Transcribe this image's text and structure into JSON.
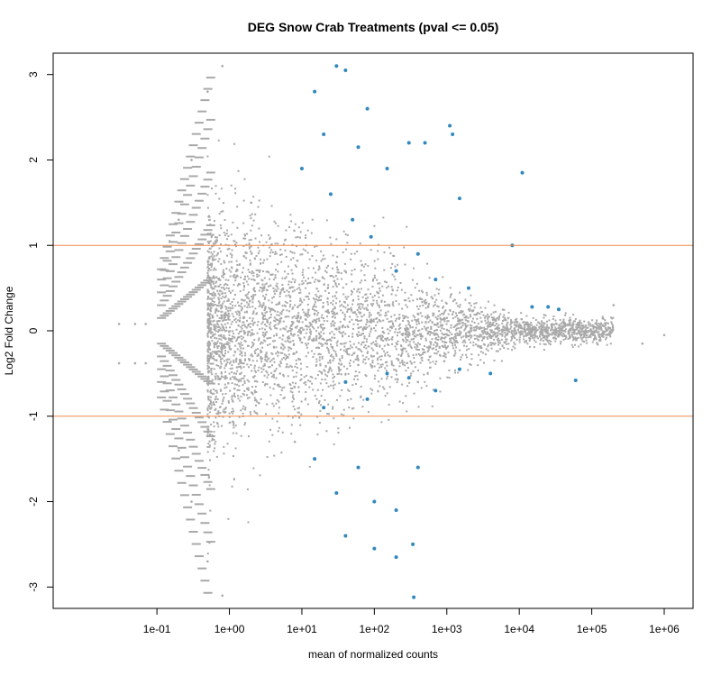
{
  "chart_data": {
    "type": "scatter",
    "title": "DEG Snow Crab Treatments  (pval <= 0.05)",
    "xlabel": "mean of normalized counts",
    "ylabel": "Log2 Fold Change",
    "x_scale": "log10",
    "xlim": [
      0.0037,
      2500000
    ],
    "ylim": [
      -3.25,
      3.25
    ],
    "x_ticks": [
      {
        "value": 0.1,
        "label": "1e-01"
      },
      {
        "value": 1,
        "label": "1e+00"
      },
      {
        "value": 10,
        "label": "1e+01"
      },
      {
        "value": 100,
        "label": "1e+02"
      },
      {
        "value": 1000,
        "label": "1e+03"
      },
      {
        "value": 10000,
        "label": "1e+04"
      },
      {
        "value": 100000,
        "label": "1e+05"
      },
      {
        "value": 1000000,
        "label": "1e+06"
      }
    ],
    "y_ticks": [
      {
        "value": -3,
        "label": "-3"
      },
      {
        "value": -2,
        "label": "-2"
      },
      {
        "value": -1,
        "label": "-1"
      },
      {
        "value": 0,
        "label": "0"
      },
      {
        "value": 1,
        "label": "1"
      },
      {
        "value": 2,
        "label": "2"
      },
      {
        "value": 3,
        "label": "3"
      }
    ],
    "reference_lines": [
      {
        "axis": "y",
        "value": 1,
        "color": "#F08A4B"
      },
      {
        "axis": "y",
        "value": -1,
        "color": "#F08A4B"
      }
    ],
    "grid": false,
    "legend": "none",
    "colors": {
      "not_significant": "#A9A9A9",
      "significant": "#3288BD",
      "threshold_line": "#F08A4B"
    },
    "series": [
      {
        "color": "#A9A9A9",
        "values": [
          [
            0.03,
            0.08
          ],
          [
            0.05,
            0.08
          ],
          [
            0.07,
            0.08
          ],
          [
            0.03,
            -0.38
          ],
          [
            0.05,
            -0.38
          ],
          [
            0.07,
            -0.38
          ],
          [
            0.15,
            1.05
          ],
          [
            0.2,
            1.3
          ],
          [
            0.3,
            2.0
          ],
          [
            0.5,
            2.8
          ],
          [
            0.8,
            3.1
          ],
          [
            0.15,
            -1.05
          ],
          [
            0.2,
            -1.4
          ],
          [
            0.3,
            -2.0
          ],
          [
            0.5,
            -2.7
          ],
          [
            0.8,
            -3.1
          ],
          [
            2,
            1.5
          ],
          [
            3,
            0.5
          ],
          [
            5,
            -0.5
          ],
          [
            8,
            -1.3
          ],
          [
            15,
            0.2
          ],
          [
            30,
            0.8
          ],
          [
            60,
            -0.4
          ],
          [
            150,
            0.3
          ],
          [
            400,
            -0.6
          ],
          [
            1000,
            0.15
          ],
          [
            3000,
            -0.2
          ],
          [
            8000,
            0.1
          ],
          [
            20000,
            0.05
          ],
          [
            60000,
            -0.1
          ],
          [
            200000,
            0.3
          ],
          [
            500000,
            -0.15
          ],
          [
            1000000,
            -0.05
          ]
        ]
      },
      {
        "color": "#3288BD",
        "values": [
          [
            10,
            1.9
          ],
          [
            15,
            2.8
          ],
          [
            20,
            2.3
          ],
          [
            30,
            3.1
          ],
          [
            40,
            3.05
          ],
          [
            60,
            2.15
          ],
          [
            80,
            2.6
          ],
          [
            150,
            1.9
          ],
          [
            300,
            2.2
          ],
          [
            500,
            2.2
          ],
          [
            1100,
            2.4
          ],
          [
            1200,
            2.3
          ],
          [
            11000,
            1.85
          ],
          [
            25,
            1.6
          ],
          [
            50,
            1.3
          ],
          [
            90,
            1.1
          ],
          [
            200,
            0.7
          ],
          [
            400,
            0.9
          ],
          [
            700,
            0.6
          ],
          [
            1500,
            1.55
          ],
          [
            2000,
            0.5
          ],
          [
            8000,
            1.0
          ],
          [
            15000,
            0.28
          ],
          [
            25000,
            0.28
          ],
          [
            35000,
            0.25
          ],
          [
            60000,
            -0.58
          ],
          [
            20,
            -0.9
          ],
          [
            40,
            -0.6
          ],
          [
            80,
            -0.8
          ],
          [
            150,
            -0.5
          ],
          [
            300,
            -0.55
          ],
          [
            700,
            -0.7
          ],
          [
            1500,
            -0.45
          ],
          [
            4000,
            -0.5
          ],
          [
            15,
            -1.5
          ],
          [
            30,
            -1.9
          ],
          [
            60,
            -1.6
          ],
          [
            100,
            -2.0
          ],
          [
            200,
            -2.1
          ],
          [
            400,
            -1.6
          ],
          [
            40,
            -2.4
          ],
          [
            100,
            -2.55
          ],
          [
            200,
            -2.65
          ],
          [
            340,
            -2.5
          ],
          [
            350,
            -3.12
          ]
        ]
      }
    ]
  }
}
